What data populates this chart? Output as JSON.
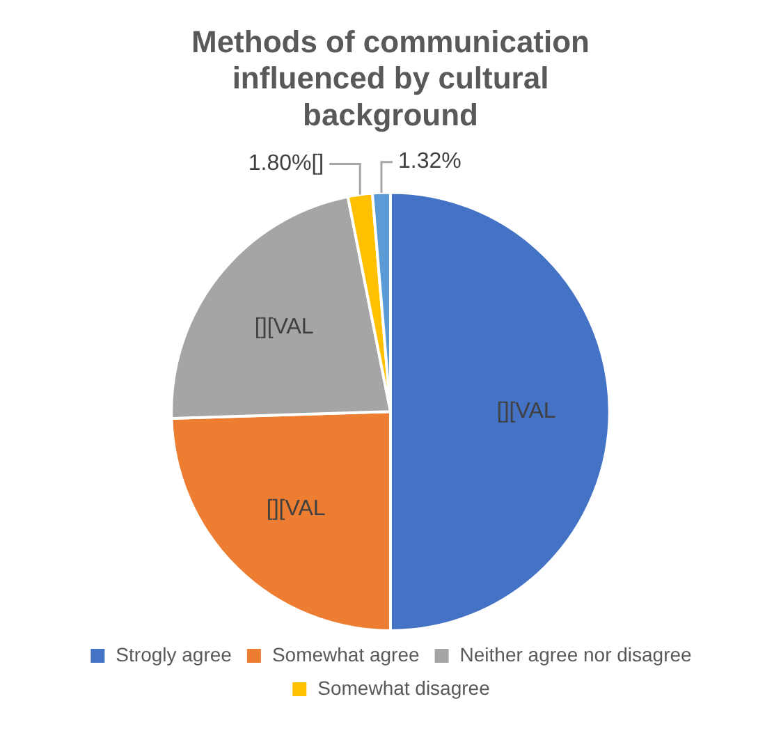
{
  "chart_data": {
    "type": "pie",
    "title": "Methods of communication influenced by cultural background",
    "categories": [
      "Strogly agree",
      "Somewhat agree",
      "Neither agree nor disagree",
      "Somewhat disagree",
      null
    ],
    "values": [
      50,
      24.5,
      22.38,
      1.8,
      1.32
    ],
    "colors": [
      "#4472c4",
      "#ed7d31",
      "#a5a5a5",
      "#ffc000",
      "#5b9bd5"
    ],
    "value_labels": [
      "[][VAL",
      "[][VAL",
      "[][VAL",
      "1.80%[]",
      "1.32%"
    ],
    "legend": "bottom"
  }
}
